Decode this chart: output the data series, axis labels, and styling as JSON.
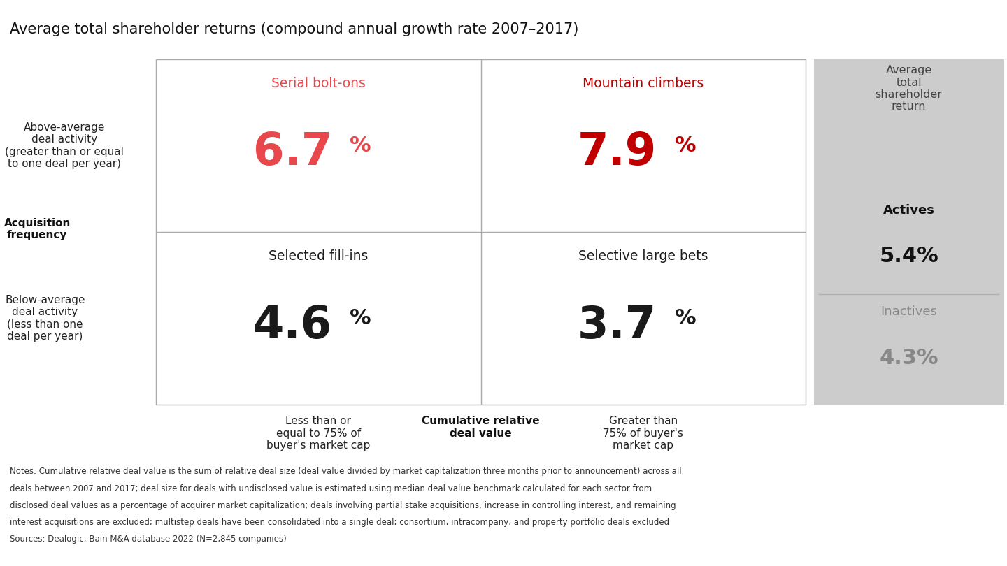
{
  "title": "Average total shareholder returns (compound annual growth rate 2007–2017)",
  "title_fontsize": 15,
  "background_color": "#ffffff",
  "quadrants": [
    {
      "name": "Serial bolt-ons",
      "value": "6.7",
      "row": "top",
      "col": "left",
      "name_color": "#e8474c",
      "value_color": "#e8474c"
    },
    {
      "name": "Mountain climbers",
      "value": "7.9",
      "row": "top",
      "col": "right",
      "name_color": "#c00000",
      "value_color": "#c00000"
    },
    {
      "name": "Selected fill-ins",
      "value": "4.6",
      "row": "bottom",
      "col": "left",
      "name_color": "#1a1a1a",
      "value_color": "#1a1a1a"
    },
    {
      "name": "Selective large bets",
      "value": "3.7",
      "row": "bottom",
      "col": "right",
      "name_color": "#1a1a1a",
      "value_color": "#1a1a1a"
    }
  ],
  "y_label_top": "Above-average\ndeal activity\n(greater than or equal\nto one deal per year)",
  "y_label_bottom": "Below-average\ndeal activity\n(less than one\ndeal per year)",
  "y_axis_title": "Acquisition\nfrequency",
  "x_label_left": "Less than or\nequal to 75% of\nbuyer's market cap",
  "x_label_center": "Cumulative relative\ndeal value",
  "x_label_right": "Greater than\n75% of buyer's\nmarket cap",
  "sidebar_title": "Average\ntotal\nshareholder\nreturn",
  "actives_label": "Actives",
  "actives_value": "5.4%",
  "inactives_label": "Inactives",
  "inactives_value": "4.3%",
  "sidebar_color": "#cccccc",
  "divider_color": "#b0b0b0",
  "grid_line_color": "#aaaaaa",
  "notes_line1": "Notes: Cumulative relative deal value is the sum of relative deal size (deal value divided by market capitalization three months prior to announcement) across all",
  "notes_line2": "deals between 2007 and 2017; deal size for deals with undisclosed value is estimated using median deal value benchmark calculated for each sector from",
  "notes_line3": "disclosed deal values as a percentage of acquirer market capitalization; deals involving partial stake acquisitions, increase in controlling interest, and remaining",
  "notes_line4": "interest acquisitions are excluded; multistep deals have been consolidated into a single deal; consortium, intracompany, and property portfolio deals excluded",
  "notes_line5": "Sources: Dealogic; Bain M&A database 2022 (N=2,845 companies)"
}
